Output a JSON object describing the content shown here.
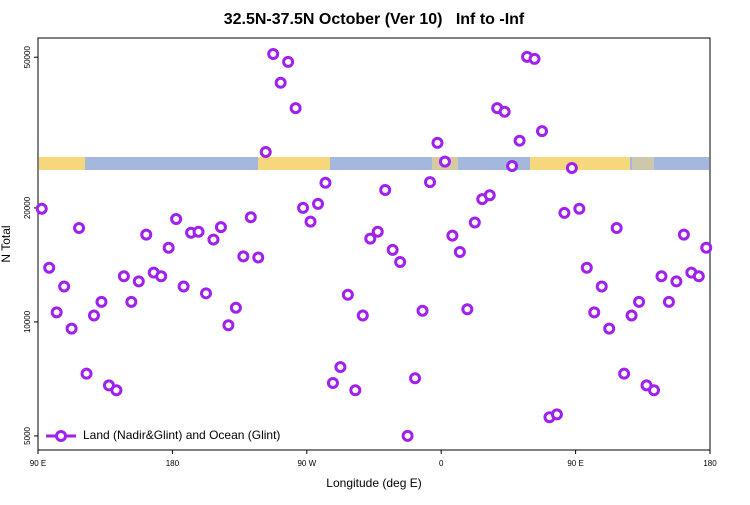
{
  "chart_data": {
    "type": "scatter",
    "title": "32.5N-37.5N October (Ver 10)   Inf to -Inf",
    "xlabel": "Longitude (deg E)",
    "ylabel": "N Total",
    "log_y": true,
    "legend": "lower left",
    "xlim": [
      90,
      540
    ],
    "ylim": [
      4590,
      56200
    ],
    "xticks": [
      {
        "value": 90,
        "label": "90 E"
      },
      180,
      {
        "value": 270,
        "label": "90 W"
      },
      {
        "value": 360,
        "label": "0"
      },
      {
        "value": 450,
        "label": "90 E"
      },
      {
        "value": 540,
        "label": "180"
      }
    ],
    "yticks": [
      5000,
      10000,
      20000,
      50000
    ],
    "series": [
      {
        "name": "Land (Nadir&Glint) and Ocean (Glint)",
        "color": "#a020f0",
        "x": [
          92.5,
          97.5,
          102.5,
          107.5,
          112.5,
          117.5,
          122.5,
          127.5,
          132.5,
          137.5,
          142.5,
          147.5,
          152.5,
          157.5,
          162.5,
          167.5,
          172.5,
          177.5,
          182.5,
          187.5,
          192.5,
          197.5,
          202.5,
          207.5,
          212.5,
          217.5,
          222.5,
          227.5,
          232.5,
          237.5,
          242.5,
          247.5,
          252.5,
          257.5,
          262.5,
          267.5,
          272.5,
          277.5,
          282.5,
          287.5,
          292.5,
          297.5,
          302.5,
          307.5,
          312.5,
          317.5,
          322.5,
          327.5,
          332.5,
          337.5,
          342.5,
          347.5,
          352.5,
          357.5,
          362.5,
          367.5,
          372.5,
          377.5,
          382.5,
          387.5,
          392.5,
          397.5,
          402.5,
          407.5,
          412.5,
          417.5,
          422.5,
          427.5,
          432.5,
          437.5,
          442.5,
          447.5,
          452.5,
          457.5,
          462.5,
          467.5,
          472.5,
          477.5,
          482.5,
          487.5,
          492.5,
          497.5,
          502.5,
          507.5,
          512.5,
          517.5,
          522.5,
          527.5,
          532.5,
          537.5
        ],
        "values": [
          19900,
          13900,
          10600,
          12400,
          9600,
          17700,
          7300,
          10400,
          11300,
          6800,
          6600,
          13200,
          11300,
          12800,
          17000,
          13500,
          13200,
          15700,
          18700,
          12400,
          17200,
          17300,
          11900,
          16500,
          17800,
          9800,
          10900,
          14900,
          18900,
          14800,
          28100,
          51000,
          42800,
          48600,
          36700,
          20000,
          18400,
          20500,
          23300,
          6900,
          7600,
          11800,
          6600,
          10400,
          16600,
          17300,
          22300,
          15500,
          14400,
          5000,
          7100,
          10700,
          23400,
          29700,
          26500,
          16900,
          15300,
          10800,
          18300,
          21100,
          21600,
          36700,
          35900,
          25800,
          30100,
          50100,
          49500,
          31900,
          5600,
          5700,
          19400,
          25500,
          19900,
          13900,
          10600,
          12400,
          9600,
          17700,
          7300,
          10400,
          11300,
          6800,
          6600,
          13200,
          11300,
          12800,
          17000,
          13500,
          13200,
          15700
        ]
      }
    ]
  }
}
